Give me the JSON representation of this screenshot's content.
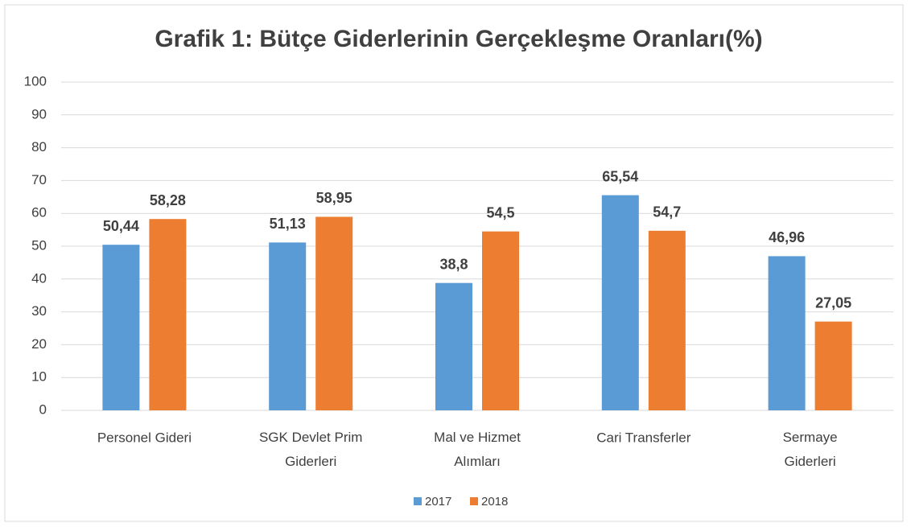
{
  "chart_data": {
    "type": "bar",
    "title": "Grafik 1: Bütçe Giderlerinin Gerçekleşme Oranları(%)",
    "categories": [
      "Personel Gideri",
      "SGK Devlet Prim Giderleri",
      "Mal ve Hizmet Alımları",
      "Cari Transferler",
      "Sermaye Giderleri"
    ],
    "series": [
      {
        "name": "2017",
        "color": "#5b9bd5",
        "values": [
          50.44,
          51.13,
          38.8,
          65.54,
          46.96
        ],
        "value_labels": [
          "50,44",
          "51,13",
          "38,8",
          "65,54",
          "46,96"
        ]
      },
      {
        "name": "2018",
        "color": "#ed7d31",
        "values": [
          58.28,
          58.95,
          54.5,
          54.7,
          27.05
        ],
        "value_labels": [
          "58,28",
          "58,95",
          "54,5",
          "54,7",
          "27,05"
        ]
      }
    ],
    "ylim": [
      0,
      100
    ],
    "yticks": [
      0,
      10,
      20,
      30,
      40,
      50,
      60,
      70,
      80,
      90,
      100
    ],
    "grid": true,
    "legend": "bottom"
  }
}
